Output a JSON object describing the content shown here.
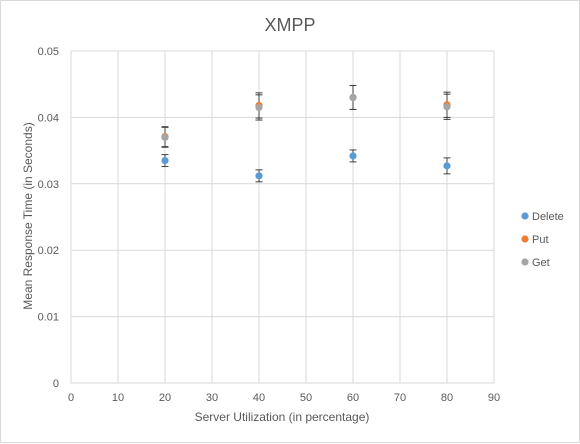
{
  "chart_data": {
    "type": "scatter",
    "title": "XMPP",
    "xlabel": "Server Utilization (in percentage)",
    "ylabel": "Mean Response Time (in Seconds)",
    "xlim": [
      0,
      90
    ],
    "ylim": [
      0,
      0.05
    ],
    "xticks": [
      0,
      10,
      20,
      30,
      40,
      50,
      60,
      70,
      80,
      90
    ],
    "yticks": [
      0,
      0.01,
      0.02,
      0.03,
      0.04,
      0.05
    ],
    "xtick_labels": [
      "0",
      "10",
      "20",
      "30",
      "40",
      "50",
      "60",
      "70",
      "80",
      "90"
    ],
    "ytick_labels": [
      "0",
      "0.01",
      "0.02",
      "0.03",
      "0.04",
      "0.05"
    ],
    "grid": true,
    "legend_position": "right",
    "series": [
      {
        "name": "Delete",
        "color": "#5b9bd5",
        "points": [
          {
            "x": 20,
            "y": 0.0335,
            "err": 0.0009
          },
          {
            "x": 40,
            "y": 0.0312,
            "err": 0.0009
          },
          {
            "x": 60,
            "y": 0.0342,
            "err": 0.0009
          },
          {
            "x": 80,
            "y": 0.0327,
            "err": 0.0012
          }
        ]
      },
      {
        "name": "Put",
        "color": "#ed7d31",
        "points": [
          {
            "x": 20,
            "y": 0.0371,
            "err": 0.0015
          },
          {
            "x": 40,
            "y": 0.0418,
            "err": 0.0019
          },
          {
            "x": 60,
            "y": 0.043,
            "err": 0.0018
          },
          {
            "x": 80,
            "y": 0.0419,
            "err": 0.0019
          }
        ]
      },
      {
        "name": "Get",
        "color": "#a5a5a5",
        "points": [
          {
            "x": 20,
            "y": 0.037,
            "err": 0.0015
          },
          {
            "x": 40,
            "y": 0.0415,
            "err": 0.0019
          },
          {
            "x": 60,
            "y": 0.043,
            "err": 0.0018
          },
          {
            "x": 80,
            "y": 0.0416,
            "err": 0.0019
          }
        ]
      }
    ]
  }
}
